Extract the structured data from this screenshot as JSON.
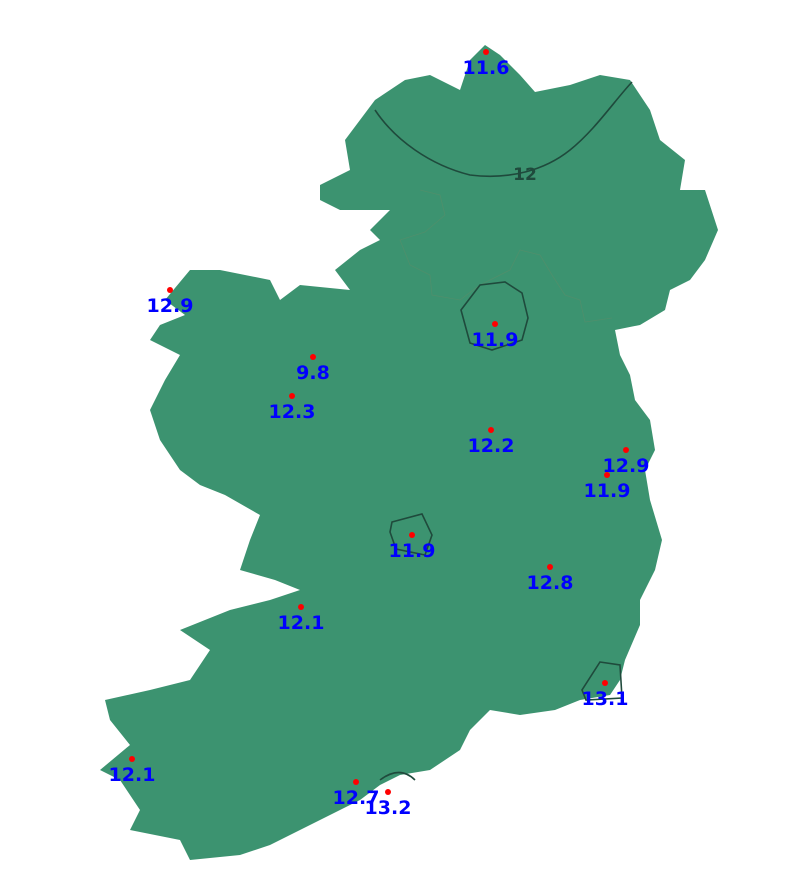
{
  "map": {
    "land_color": "#3c9370",
    "contour_color": "#1f4a3c",
    "point_color": "#ff0000",
    "label_color": "#0000ff",
    "contour_labels": [
      "12"
    ],
    "stations": [
      {
        "value": "11.6"
      },
      {
        "value": "12.9"
      },
      {
        "value": "9.8"
      },
      {
        "value": "12.3"
      },
      {
        "value": "11.9"
      },
      {
        "value": "12.2"
      },
      {
        "value": "12.9"
      },
      {
        "value": "11.9"
      },
      {
        "value": "11.9"
      },
      {
        "value": "12.8"
      },
      {
        "value": "12.1"
      },
      {
        "value": "13.1"
      },
      {
        "value": "12.1"
      },
      {
        "value": "12.7"
      },
      {
        "value": "13.2"
      }
    ]
  }
}
